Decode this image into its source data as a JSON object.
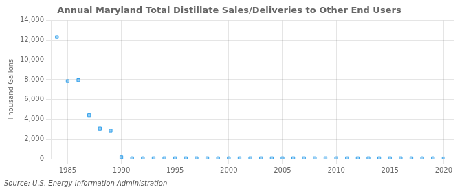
{
  "chart_data": {
    "type": "scatter",
    "title": "Annual Maryland Total Distillate Sales/Deliveries to Other End Users",
    "ylabel": "Thousand Gallons",
    "annotations": [
      "Source: U.S. Energy Information Administration"
    ],
    "marker": "square",
    "grid": true,
    "xlim": [
      1983.5,
      2021
    ],
    "ylim": [
      0,
      14000
    ],
    "xticks": [
      1985,
      1990,
      1995,
      2000,
      2005,
      2010,
      2015,
      2020
    ],
    "yticks": [
      0,
      {
        "value": 2000,
        "label": "2,000"
      },
      {
        "value": 4000,
        "label": "4,000"
      },
      {
        "value": 6000,
        "label": "6,000"
      },
      {
        "value": 8000,
        "label": "8,000"
      },
      {
        "value": 10000,
        "label": "10,000"
      },
      {
        "value": 12000,
        "label": "12,000"
      },
      {
        "value": 14000,
        "label": "14,000"
      }
    ],
    "x": [
      1984,
      1985,
      1986,
      1987,
      1988,
      1989,
      1990,
      1991,
      1992,
      1993,
      1994,
      1995,
      1996,
      1997,
      1998,
      1999,
      2000,
      2001,
      2002,
      2003,
      2004,
      2005,
      2006,
      2007,
      2008,
      2009,
      2010,
      2011,
      2012,
      2013,
      2014,
      2015,
      2016,
      2017,
      2018,
      2019,
      2020
    ],
    "values": [
      12300,
      7850,
      7950,
      4400,
      3050,
      2850,
      150,
      50,
      50,
      50,
      50,
      50,
      50,
      50,
      50,
      50,
      50,
      50,
      50,
      50,
      50,
      50,
      50,
      50,
      50,
      50,
      50,
      50,
      50,
      50,
      50,
      50,
      50,
      50,
      50,
      50,
      30
    ]
  }
}
